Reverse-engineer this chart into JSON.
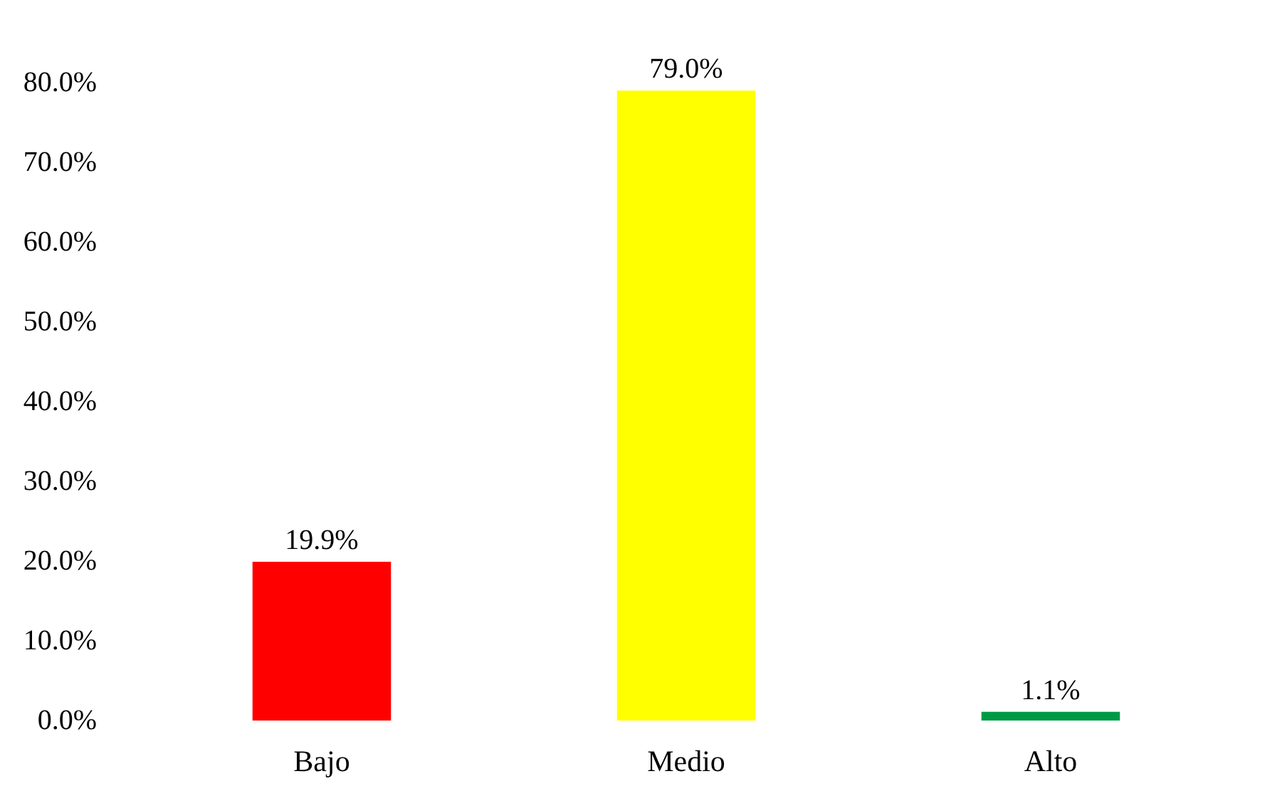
{
  "chart_data": {
    "type": "bar",
    "categories": [
      "Bajo",
      "Medio",
      "Alto"
    ],
    "values": [
      19.9,
      79.0,
      1.1
    ],
    "colors": [
      "#ff0000",
      "#ffff00",
      "#009a44"
    ],
    "value_labels": [
      "19.9%",
      "79.0%",
      "1.1%"
    ],
    "ylim": [
      0,
      80
    ],
    "yticks": [
      {
        "value": 0,
        "label": "0.0%"
      },
      {
        "value": 10,
        "label": "10.0%"
      },
      {
        "value": 20,
        "label": "20.0%"
      },
      {
        "value": 30,
        "label": "30.0%"
      },
      {
        "value": 40,
        "label": "40.0%"
      },
      {
        "value": 50,
        "label": "50.0%"
      },
      {
        "value": 60,
        "label": "60.0%"
      },
      {
        "value": 70,
        "label": "70.0%"
      },
      {
        "value": 80,
        "label": "80.0%"
      }
    ],
    "grid": false
  }
}
